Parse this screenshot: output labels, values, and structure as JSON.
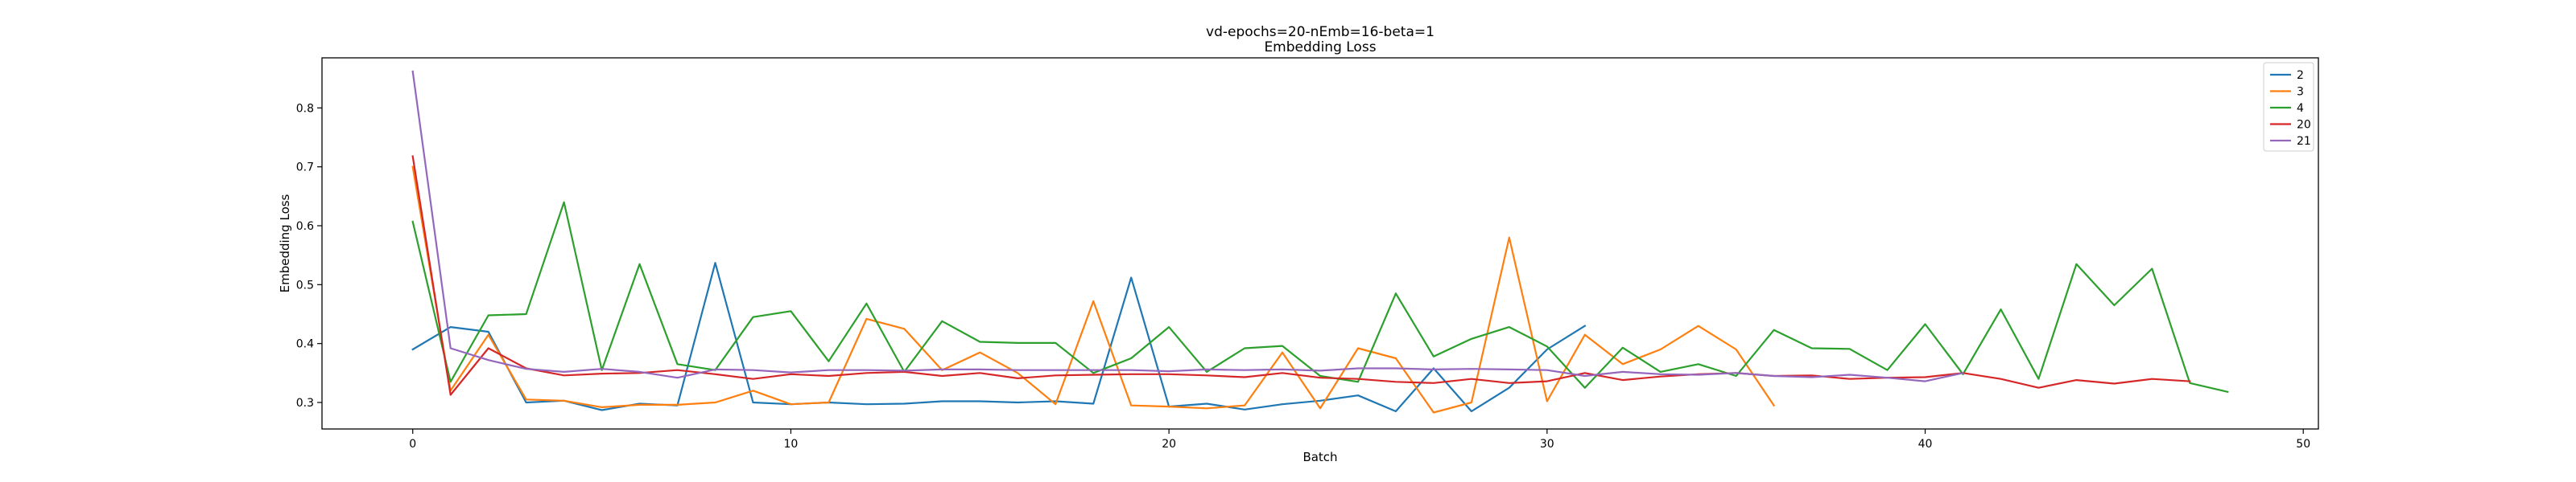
{
  "chart_data": {
    "type": "line",
    "title": "vd-epochs=20-nEmb=16-beta=1",
    "subtitle": "Embedding Loss",
    "xlabel": "Batch",
    "ylabel": "Embedding Loss",
    "xlim": [
      -2.4,
      50.4
    ],
    "ylim": [
      0.255,
      0.885
    ],
    "x_ticks": [
      0,
      10,
      20,
      30,
      40,
      50
    ],
    "y_ticks": [
      0.3,
      0.4,
      0.5,
      0.6,
      0.7,
      0.8
    ],
    "grid": false,
    "legend_position": "top-right",
    "series": [
      {
        "name": "2",
        "color": "#1f77b4",
        "x": [
          0,
          1,
          2,
          3,
          4,
          5,
          6,
          7,
          8,
          9,
          10,
          11,
          12,
          13,
          14,
          15,
          16,
          17,
          18,
          19,
          20,
          21,
          22,
          23,
          24,
          25,
          26,
          27,
          28,
          29,
          30,
          31
        ],
        "values": [
          0.39,
          0.428,
          0.42,
          0.3,
          0.303,
          0.287,
          0.298,
          0.295,
          0.537,
          0.3,
          0.297,
          0.3,
          0.297,
          0.298,
          0.302,
          0.302,
          0.3,
          0.302,
          0.298,
          0.512,
          0.293,
          0.298,
          0.288,
          0.297,
          0.303,
          0.312,
          0.285,
          0.358,
          0.285,
          0.325,
          0.39,
          0.43
        ]
      },
      {
        "name": "3",
        "color": "#ff7f0e",
        "x": [
          0,
          1,
          2,
          3,
          4,
          5,
          6,
          7,
          8,
          9,
          10,
          11,
          12,
          13,
          14,
          15,
          16,
          17,
          18,
          19,
          20,
          21,
          22,
          23,
          24,
          25,
          26,
          27,
          28,
          29,
          30,
          31,
          32,
          33,
          34,
          35,
          36
        ],
        "values": [
          0.7,
          0.32,
          0.415,
          0.305,
          0.303,
          0.292,
          0.296,
          0.296,
          0.3,
          0.32,
          0.297,
          0.3,
          0.442,
          0.425,
          0.355,
          0.385,
          0.35,
          0.297,
          0.472,
          0.295,
          0.293,
          0.29,
          0.295,
          0.385,
          0.29,
          0.392,
          0.375,
          0.283,
          0.3,
          0.58,
          0.302,
          0.415,
          0.365,
          0.39,
          0.43,
          0.39,
          0.295
        ]
      },
      {
        "name": "4",
        "color": "#2ca02c",
        "x": [
          0,
          1,
          2,
          3,
          4,
          5,
          6,
          7,
          8,
          9,
          10,
          11,
          12,
          13,
          14,
          15,
          16,
          17,
          18,
          19,
          20,
          21,
          22,
          23,
          24,
          25,
          26,
          27,
          28,
          29,
          30,
          31,
          32,
          33,
          34,
          35,
          36,
          37,
          38,
          39,
          40,
          41,
          42,
          43,
          44,
          45,
          46,
          47,
          48
        ],
        "values": [
          0.607,
          0.335,
          0.448,
          0.45,
          0.64,
          0.355,
          0.535,
          0.365,
          0.355,
          0.445,
          0.455,
          0.37,
          0.468,
          0.352,
          0.438,
          0.403,
          0.401,
          0.401,
          0.35,
          0.375,
          0.428,
          0.352,
          0.392,
          0.396,
          0.345,
          0.335,
          0.485,
          0.378,
          0.408,
          0.428,
          0.395,
          0.325,
          0.393,
          0.352,
          0.365,
          0.345,
          0.423,
          0.392,
          0.391,
          0.355,
          0.433,
          0.348,
          0.458,
          0.34,
          0.535,
          0.465,
          0.527,
          0.333,
          0.318
        ]
      },
      {
        "name": "20",
        "color": "#d62728",
        "x": [
          0,
          1,
          2,
          3,
          4,
          5,
          6,
          7,
          8,
          9,
          10,
          11,
          12,
          13,
          14,
          15,
          16,
          17,
          18,
          19,
          20,
          21,
          22,
          23,
          24,
          25,
          26,
          27,
          28,
          29,
          30,
          31,
          32,
          33,
          34,
          35,
          36,
          37,
          38,
          39,
          40,
          41,
          42,
          43,
          44,
          45,
          46,
          47
        ],
        "values": [
          0.718,
          0.313,
          0.392,
          0.358,
          0.346,
          0.349,
          0.35,
          0.355,
          0.348,
          0.34,
          0.348,
          0.345,
          0.35,
          0.352,
          0.345,
          0.35,
          0.341,
          0.346,
          0.347,
          0.348,
          0.348,
          0.346,
          0.343,
          0.35,
          0.342,
          0.34,
          0.335,
          0.333,
          0.34,
          0.333,
          0.336,
          0.35,
          0.338,
          0.344,
          0.348,
          0.35,
          0.345,
          0.346,
          0.34,
          0.342,
          0.343,
          0.35,
          0.34,
          0.325,
          0.338,
          0.332,
          0.34,
          0.336
        ]
      },
      {
        "name": "21",
        "color": "#9467bd",
        "x": [
          0,
          1,
          2,
          3,
          4,
          5,
          6,
          7,
          8,
          9,
          10,
          11,
          12,
          13,
          14,
          15,
          16,
          17,
          18,
          19,
          20,
          21,
          22,
          23,
          24,
          25,
          26,
          27,
          28,
          29,
          30,
          31,
          32,
          33,
          34,
          35,
          36,
          37,
          38,
          39,
          40,
          41
        ],
        "values": [
          0.862,
          0.392,
          0.372,
          0.357,
          0.352,
          0.357,
          0.352,
          0.342,
          0.356,
          0.355,
          0.351,
          0.355,
          0.355,
          0.354,
          0.356,
          0.356,
          0.355,
          0.355,
          0.355,
          0.355,
          0.353,
          0.356,
          0.355,
          0.356,
          0.354,
          0.358,
          0.358,
          0.356,
          0.357,
          0.356,
          0.355,
          0.345,
          0.352,
          0.348,
          0.347,
          0.35,
          0.345,
          0.343,
          0.347,
          0.342,
          0.336,
          0.35
        ]
      }
    ]
  }
}
